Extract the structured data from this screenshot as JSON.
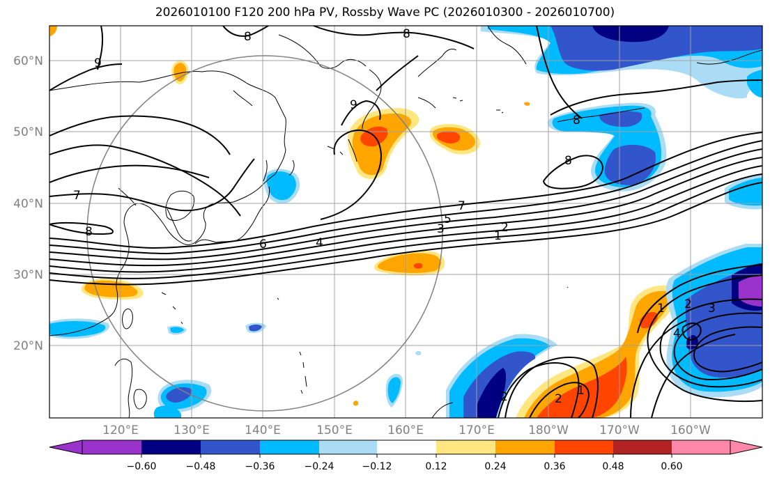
{
  "title": "2026010100 F120 200 hPa PV, Rossby Wave PC (2026010300 - 2026010700)",
  "lat_labels": [
    "60°N",
    "50°N",
    "40°N",
    "30°N",
    "20°N"
  ],
  "lon_labels": [
    "120°E",
    "130°E",
    "140°E",
    "150°E",
    "160°E",
    "170°E",
    "180°W",
    "170°W",
    "160°W"
  ],
  "colorbar": {
    "ticks": [
      "−0.60",
      "−0.48",
      "−0.36",
      "−0.24",
      "−0.12",
      "0.12",
      "0.24",
      "0.36",
      "0.48",
      "0.60"
    ],
    "colors": [
      "#9933cc",
      "#000080",
      "#3355cc",
      "#00bbff",
      "#aaddf5",
      "#ffffff",
      "#ffe680",
      "#ffa500",
      "#ff4500",
      "#b22222",
      "#ff88aa"
    ]
  },
  "contour_labels": [
    "9",
    "8",
    "8",
    "9",
    "8",
    "8",
    "7",
    "8",
    "7",
    "5",
    "3",
    "2",
    "1",
    "6",
    "4",
    "1",
    "2",
    "3",
    "4",
    "2",
    "1",
    "2"
  ]
}
